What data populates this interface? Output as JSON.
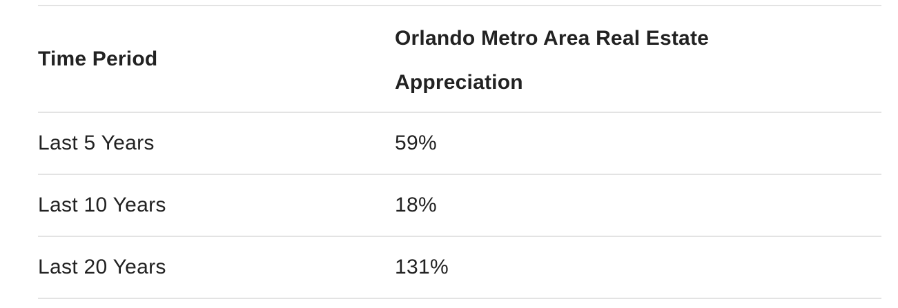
{
  "table": {
    "headers": [
      "Time Period",
      "Orlando Metro Area Real Estate Appreciation"
    ],
    "rows": [
      [
        "Last 5 Years",
        "59%"
      ],
      [
        "Last 10 Years",
        "18%"
      ],
      [
        "Last 20 Years",
        "131%"
      ]
    ]
  }
}
